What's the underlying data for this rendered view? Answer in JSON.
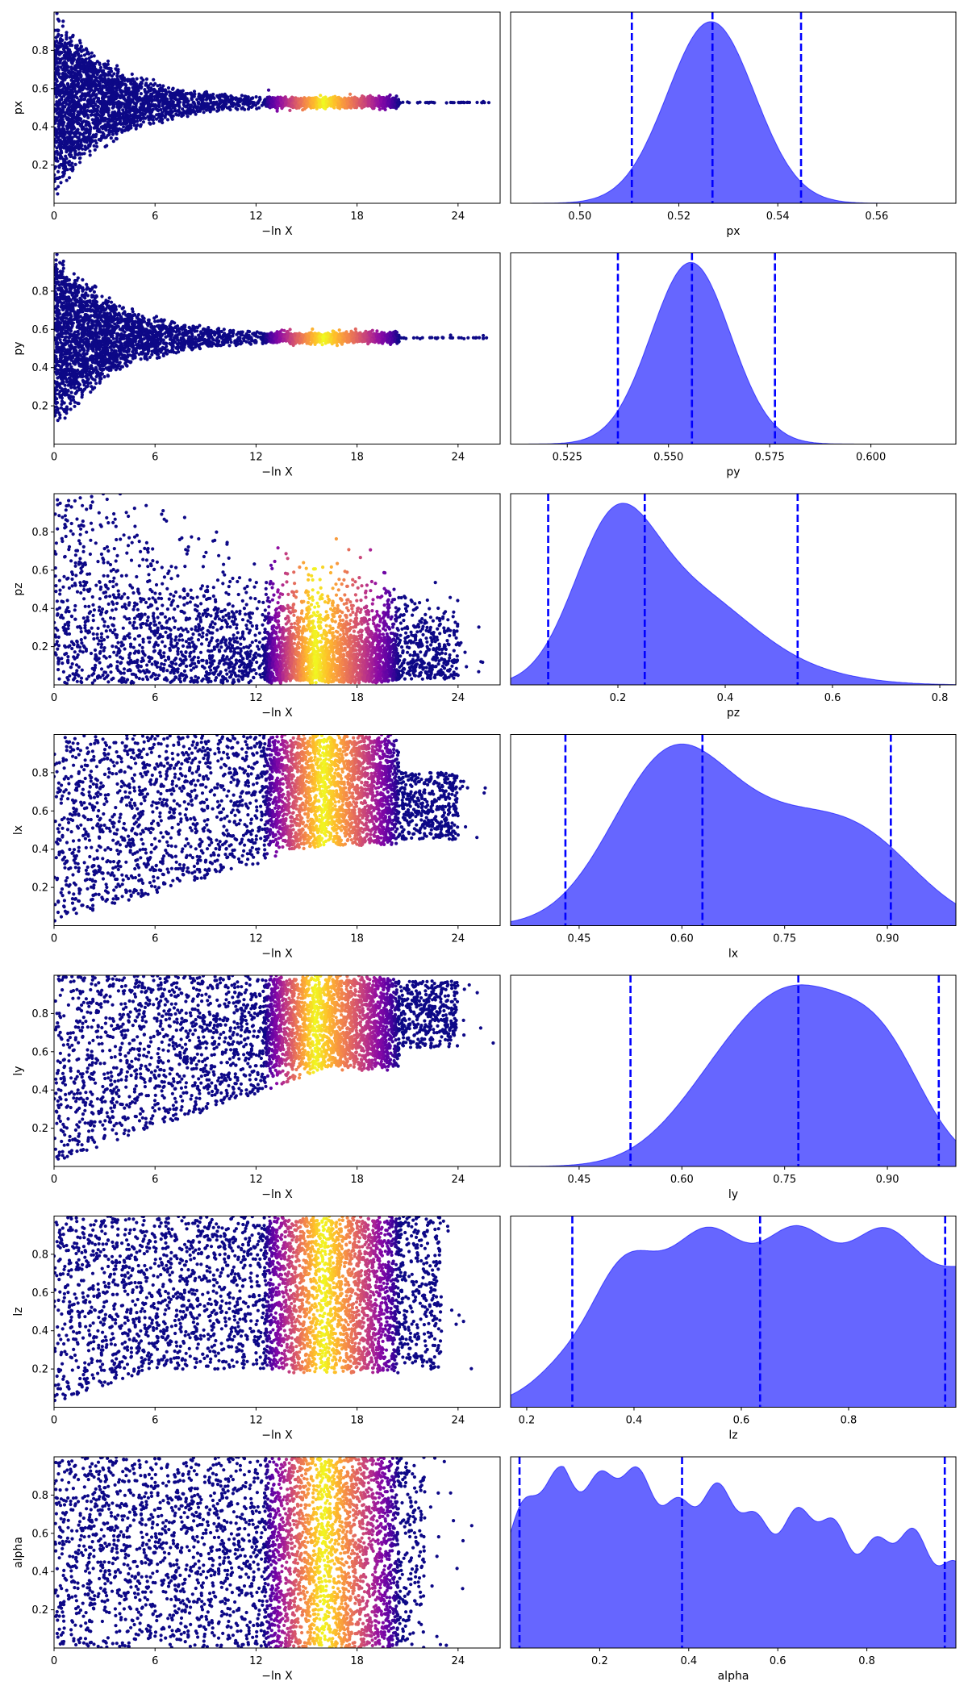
{
  "chart_data": [
    {
      "type": "scatter",
      "panel": "trace",
      "ylabel": "px",
      "xlabel": "−ln X",
      "xlim": [
        0,
        26.5
      ],
      "ylim": [
        0,
        1
      ],
      "xticks": [
        0,
        6,
        12,
        18,
        24
      ],
      "yticks": [
        0.2,
        0.4,
        0.6,
        0.8
      ],
      "converge_value": 0.527,
      "converge_spread": 0.015,
      "bright_range": [
        12.5,
        20.5
      ],
      "bright_center": 16,
      "shape": "converge"
    },
    {
      "type": "area",
      "panel": "posterior",
      "xlabel": "px",
      "xlim": [
        0.486,
        0.576
      ],
      "xticks": [
        0.5,
        0.52,
        0.54,
        0.56
      ],
      "tick_decimals": 2,
      "mode": 0.526,
      "quantiles": [
        0.5105,
        0.5268,
        0.5447
      ],
      "density": {
        "type": "gauss",
        "mu": 0.5265,
        "sigma": 0.0088
      },
      "fill_color": "#0000ff",
      "fill_opacity": 0.6,
      "line_color": "#0000ff"
    },
    {
      "type": "scatter",
      "panel": "trace",
      "ylabel": "py",
      "xlabel": "−ln X",
      "xlim": [
        0,
        26.5
      ],
      "ylim": [
        0,
        1
      ],
      "xticks": [
        0,
        6,
        12,
        18,
        24
      ],
      "yticks": [
        0.2,
        0.4,
        0.6,
        0.8
      ],
      "converge_value": 0.556,
      "converge_spread": 0.015,
      "bright_range": [
        12.5,
        20.5
      ],
      "bright_center": 16,
      "shape": "converge"
    },
    {
      "type": "area",
      "panel": "posterior",
      "xlabel": "py",
      "xlim": [
        0.511,
        0.621
      ],
      "xticks": [
        0.525,
        0.55,
        0.575,
        0.6
      ],
      "tick_decimals": 3,
      "mode": 0.555,
      "quantiles": [
        0.5375,
        0.5558,
        0.5763
      ],
      "density": {
        "type": "gauss",
        "mu": 0.5555,
        "sigma": 0.0098
      },
      "fill_color": "#0000ff",
      "fill_opacity": 0.6,
      "line_color": "#0000ff"
    },
    {
      "type": "scatter",
      "panel": "trace",
      "ylabel": "pz",
      "xlabel": "−ln X",
      "xlim": [
        0,
        26.5
      ],
      "ylim": [
        0,
        1
      ],
      "xticks": [
        0,
        6,
        12,
        18,
        24
      ],
      "yticks": [
        0.2,
        0.4,
        0.6,
        0.8
      ],
      "bright_range": [
        12.5,
        20.5
      ],
      "bright_center": 15.5,
      "shape": "decay-low"
    },
    {
      "type": "area",
      "panel": "posterior",
      "xlabel": "pz",
      "xlim": [
        0.0,
        0.83
      ],
      "xticks": [
        0.2,
        0.4,
        0.6,
        0.8
      ],
      "tick_decimals": 1,
      "quantiles": [
        0.07,
        0.25,
        0.535
      ],
      "density": {
        "type": "mix",
        "parts": [
          [
            0.19,
            0.075,
            1.0
          ],
          [
            0.33,
            0.11,
            0.6
          ],
          [
            0.5,
            0.12,
            0.1
          ]
        ],
        "peak": 0.95
      },
      "fill_color": "#0000ff",
      "fill_opacity": 0.6,
      "line_color": "#0000ff"
    },
    {
      "type": "scatter",
      "panel": "trace",
      "ylabel": "lx",
      "xlabel": "−ln X",
      "xlim": [
        0,
        26.5
      ],
      "ylim": [
        0,
        1
      ],
      "xticks": [
        0,
        6,
        12,
        18,
        24
      ],
      "yticks": [
        0.2,
        0.4,
        0.6,
        0.8
      ],
      "bright_range": [
        12.5,
        20.5
      ],
      "bright_center": 16,
      "shape": "rise-high"
    },
    {
      "type": "area",
      "panel": "posterior",
      "xlabel": "lx",
      "xlim": [
        0.35,
        1.0
      ],
      "xticks": [
        0.45,
        0.6,
        0.75,
        0.9
      ],
      "tick_decimals": 2,
      "quantiles": [
        0.43,
        0.63,
        0.905
      ],
      "density": {
        "type": "mix",
        "parts": [
          [
            0.58,
            0.085,
            1.0
          ],
          [
            0.75,
            0.1,
            0.55
          ],
          [
            0.88,
            0.08,
            0.35
          ]
        ],
        "peak": 0.95
      },
      "fill_color": "#0000ff",
      "fill_opacity": 0.6,
      "line_color": "#0000ff"
    },
    {
      "type": "scatter",
      "panel": "trace",
      "ylabel": "ly",
      "xlabel": "−ln X",
      "xlim": [
        0,
        26.5
      ],
      "ylim": [
        0,
        1
      ],
      "xticks": [
        0,
        6,
        12,
        18,
        24
      ],
      "yticks": [
        0.2,
        0.4,
        0.6,
        0.8
      ],
      "bright_range": [
        12.5,
        20.5
      ],
      "bright_center": 15.5,
      "shape": "rise-higher"
    },
    {
      "type": "area",
      "panel": "posterior",
      "xlabel": "ly",
      "xlim": [
        0.35,
        1.0
      ],
      "xticks": [
        0.45,
        0.6,
        0.75,
        0.9
      ],
      "tick_decimals": 2,
      "quantiles": [
        0.525,
        0.77,
        0.975
      ],
      "density": {
        "type": "mix",
        "parts": [
          [
            0.78,
            0.085,
            1.0
          ],
          [
            0.66,
            0.08,
            0.45
          ],
          [
            0.9,
            0.06,
            0.55
          ]
        ],
        "peak": 0.95
      },
      "fill_color": "#0000ff",
      "fill_opacity": 0.6,
      "line_color": "#0000ff"
    },
    {
      "type": "scatter",
      "panel": "trace",
      "ylabel": "lz",
      "xlabel": "−ln X",
      "xlim": [
        0,
        26.5
      ],
      "ylim": [
        0,
        1
      ],
      "xticks": [
        0,
        6,
        12,
        18,
        24
      ],
      "yticks": [
        0.2,
        0.4,
        0.6,
        0.8
      ],
      "bright_range": [
        12.5,
        20.5
      ],
      "bright_center": 16,
      "shape": "uniform-floor"
    },
    {
      "type": "area",
      "panel": "posterior",
      "xlabel": "lz",
      "xlim": [
        0.17,
        1.0
      ],
      "xticks": [
        0.2,
        0.4,
        0.6,
        0.8
      ],
      "tick_decimals": 1,
      "quantiles": [
        0.285,
        0.635,
        0.98
      ],
      "density": {
        "type": "plateau",
        "lo": 0.3,
        "hi": 0.96,
        "w_lo": 0.05,
        "w_hi": 0.03,
        "level": 0.88,
        "ripple": 0.05
      },
      "fill_color": "#0000ff",
      "fill_opacity": 0.6,
      "line_color": "#0000ff"
    },
    {
      "type": "scatter",
      "panel": "trace",
      "ylabel": "alpha",
      "xlabel": "−ln X",
      "xlim": [
        0,
        26.5
      ],
      "ylim": [
        0,
        1
      ],
      "xticks": [
        0,
        6,
        12,
        18,
        24
      ],
      "yticks": [
        0.2,
        0.4,
        0.6,
        0.8
      ],
      "bright_range": [
        12.5,
        20.5
      ],
      "bright_center": 16,
      "shape": "uniform"
    },
    {
      "type": "area",
      "panel": "posterior",
      "xlabel": "alpha",
      "xlim": [
        0.0,
        1.0
      ],
      "xticks": [
        0.2,
        0.4,
        0.6,
        0.8
      ],
      "tick_decimals": 1,
      "quantiles": [
        0.02,
        0.385,
        0.975
      ],
      "density": {
        "type": "declining",
        "start": 0.95,
        "end": 0.45,
        "ripple": 0.06
      },
      "fill_color": "#0000ff",
      "fill_opacity": 0.6,
      "line_color": "#0000ff"
    }
  ]
}
